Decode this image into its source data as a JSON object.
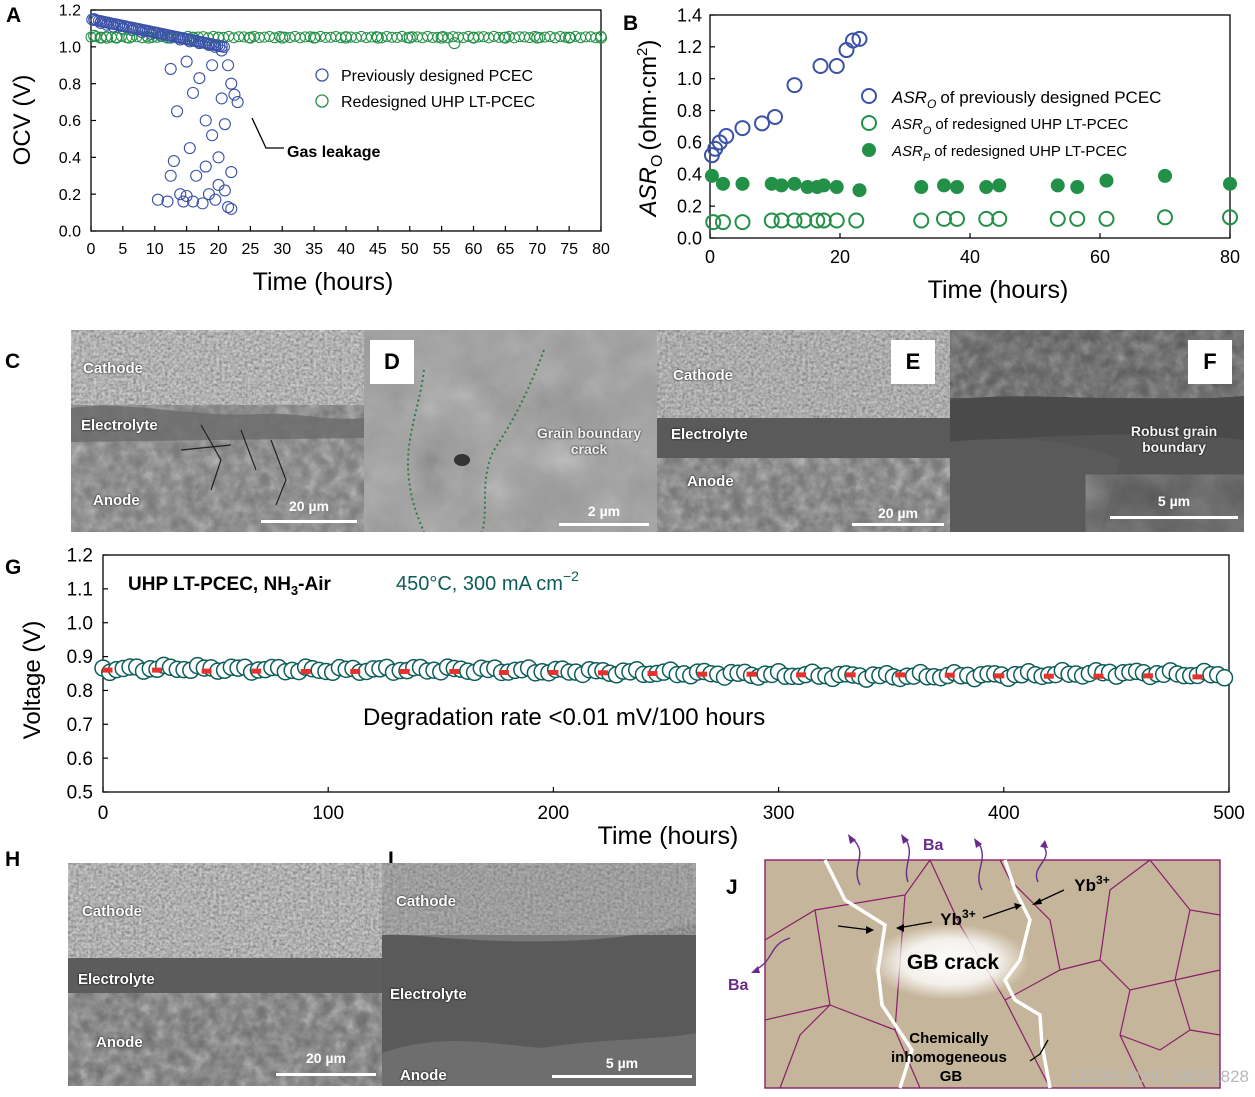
{
  "panel_letters": {
    "A": "A",
    "B": "B",
    "C": "C",
    "D": "D",
    "E": "E",
    "F": "F",
    "G": "G",
    "H": "H",
    "I": "I",
    "J": "J"
  },
  "colors": {
    "blue": "#3b52a8",
    "green": "#239047",
    "teal": "#0d5d5a",
    "red": "#e8302c",
    "gb": "#8a1f6b",
    "grain": "#c5b59a"
  },
  "chart_data": [
    {
      "id": "A",
      "type": "scatter",
      "xlabel": "Time (hours)",
      "ylabel": "OCV (V)",
      "xlim": [
        0,
        80
      ],
      "ylim": [
        0,
        1.2
      ],
      "xticks": [
        0,
        5,
        10,
        15,
        20,
        25,
        30,
        35,
        40,
        45,
        50,
        55,
        60,
        65,
        70,
        75,
        80
      ],
      "yticks": [
        0.0,
        0.2,
        0.4,
        0.6,
        0.8,
        1.0,
        1.2
      ],
      "annotation": "Gas leakage",
      "legend": [
        "Previously designed PCEC",
        "Redesigned UHP LT-PCEC"
      ],
      "series": [
        {
          "name": "Previously designed PCEC",
          "marker": "open-circle",
          "color": "#3b52a8",
          "points": [
            [
              0.5,
              1.15
            ],
            [
              1.5,
              1.13
            ],
            [
              2.5,
              1.12
            ],
            [
              3.5,
              1.11
            ],
            [
              5,
              1.1
            ],
            [
              6.5,
              1.09
            ],
            [
              8,
              1.08
            ],
            [
              9.5,
              1.07
            ],
            [
              11,
              1.06
            ],
            [
              12.5,
              1.05
            ],
            [
              14,
              1.04
            ],
            [
              15.5,
              1.03
            ],
            [
              17,
              1.02
            ],
            [
              18.5,
              1.01
            ],
            [
              19.5,
              1.0
            ],
            [
              20.5,
              0.98
            ],
            [
              21.5,
              0.9
            ],
            [
              22,
              0.8
            ],
            [
              22.5,
              0.74
            ],
            [
              23,
              0.7
            ],
            [
              10.5,
              0.17
            ],
            [
              12,
              0.16
            ],
            [
              12.5,
              0.3
            ],
            [
              13,
              0.38
            ],
            [
              13.5,
              0.65
            ],
            [
              14,
              0.2
            ],
            [
              14.5,
              0.16
            ],
            [
              15,
              0.19
            ],
            [
              15.5,
              0.45
            ],
            [
              16,
              0.16
            ],
            [
              16.5,
              0.3
            ],
            [
              17,
              0.83
            ],
            [
              17.5,
              0.15
            ],
            [
              18,
              0.35
            ],
            [
              18.5,
              0.2
            ],
            [
              19,
              0.52
            ],
            [
              19.5,
              0.17
            ],
            [
              20,
              0.25
            ],
            [
              20.5,
              0.72
            ],
            [
              21,
              0.22
            ],
            [
              21.5,
              0.13
            ],
            [
              22,
              0.32
            ],
            [
              22,
              0.12
            ],
            [
              12.5,
              0.88
            ],
            [
              15,
              0.92
            ],
            [
              16,
              0.75
            ],
            [
              18,
              0.6
            ],
            [
              19,
              0.9
            ],
            [
              20,
              0.4
            ],
            [
              21,
              0.58
            ]
          ]
        },
        {
          "name": "Redesigned UHP LT-PCEC",
          "marker": "open-circle",
          "color": "#239047",
          "points": [
            [
              0.5,
              1.06
            ],
            [
              1.5,
              1.05
            ],
            [
              2.5,
              1.05
            ],
            [
              4,
              1.05
            ],
            [
              6,
              1.05
            ],
            [
              9,
              1.05
            ],
            [
              12,
              1.05
            ],
            [
              16,
              1.05
            ],
            [
              20,
              1.05
            ],
            [
              25,
              1.05
            ],
            [
              30,
              1.05
            ],
            [
              35,
              1.05
            ],
            [
              40,
              1.05
            ],
            [
              45,
              1.05
            ],
            [
              50,
              1.05
            ],
            [
              55,
              1.05
            ],
            [
              57,
              1.02
            ],
            [
              60,
              1.05
            ],
            [
              65,
              1.05
            ],
            [
              70,
              1.05
            ],
            [
              75,
              1.05
            ],
            [
              80,
              1.05
            ]
          ]
        }
      ]
    },
    {
      "id": "B",
      "type": "scatter",
      "xlabel": "Time (hours)",
      "ylabel": "ASR",
      "ylabel_sub": "O",
      "ylabel_unit": "(ohm·cm",
      "xlim": [
        0,
        80
      ],
      "ylim": [
        0,
        1.4
      ],
      "xticks": [
        0,
        20,
        40,
        60,
        80
      ],
      "yticks": [
        0.0,
        0.2,
        0.4,
        0.6,
        0.8,
        1.0,
        1.2,
        1.4
      ],
      "legend": [
        {
          "symbol": "ASR",
          "sub": "O",
          "text": "of previously designed PCEC"
        },
        {
          "symbol": "ASR",
          "sub": "O",
          "text": "of redesigned UHP LT-PCEC"
        },
        {
          "symbol": "ASR",
          "sub": "P",
          "text": "of redesigned UHP LT-PCEC"
        }
      ],
      "series": [
        {
          "name": "ASR_O previously designed PCEC",
          "marker": "open-circle",
          "color": "#3b52a8",
          "points": [
            [
              0.3,
              0.52
            ],
            [
              0.8,
              0.56
            ],
            [
              1.5,
              0.6
            ],
            [
              2.5,
              0.64
            ],
            [
              5,
              0.69
            ],
            [
              8,
              0.72
            ],
            [
              10,
              0.76
            ],
            [
              13,
              0.96
            ],
            [
              17,
              1.08
            ],
            [
              19.5,
              1.08
            ],
            [
              21,
              1.18
            ],
            [
              22,
              1.24
            ],
            [
              23,
              1.25
            ]
          ]
        },
        {
          "name": "ASR_O redesigned UHP LT-PCEC",
          "marker": "open-circle",
          "color": "#239047",
          "points": [
            [
              0.5,
              0.1
            ],
            [
              2,
              0.1
            ],
            [
              5,
              0.1
            ],
            [
              9.5,
              0.11
            ],
            [
              11,
              0.11
            ],
            [
              13,
              0.11
            ],
            [
              14.5,
              0.11
            ],
            [
              16.5,
              0.11
            ],
            [
              17.5,
              0.11
            ],
            [
              19.5,
              0.11
            ],
            [
              22.5,
              0.11
            ],
            [
              32.5,
              0.11
            ],
            [
              36,
              0.12
            ],
            [
              38,
              0.12
            ],
            [
              42.5,
              0.12
            ],
            [
              44.5,
              0.12
            ],
            [
              53.5,
              0.12
            ],
            [
              56.5,
              0.12
            ],
            [
              61,
              0.12
            ],
            [
              70,
              0.13
            ],
            [
              80,
              0.13
            ]
          ]
        },
        {
          "name": "ASR_P redesigned UHP LT-PCEC",
          "marker": "filled-circle",
          "color": "#239047",
          "points": [
            [
              0.3,
              0.39
            ],
            [
              2,
              0.34
            ],
            [
              5,
              0.34
            ],
            [
              9.5,
              0.34
            ],
            [
              11,
              0.33
            ],
            [
              13,
              0.34
            ],
            [
              15,
              0.32
            ],
            [
              16.5,
              0.32
            ],
            [
              17.5,
              0.33
            ],
            [
              19.5,
              0.32
            ],
            [
              23,
              0.3
            ],
            [
              32.5,
              0.32
            ],
            [
              36,
              0.33
            ],
            [
              38,
              0.32
            ],
            [
              42.5,
              0.32
            ],
            [
              44.5,
              0.33
            ],
            [
              53.5,
              0.33
            ],
            [
              56.5,
              0.32
            ],
            [
              61,
              0.36
            ],
            [
              70,
              0.39
            ],
            [
              80,
              0.34
            ]
          ]
        }
      ]
    },
    {
      "id": "G",
      "type": "scatter",
      "title_bold": "UHP LT-PCEC, NH",
      "title_sub": "3",
      "title_bold_end": "-Air",
      "condition": "450°C, 300 mA cm",
      "condition_sup": "−2",
      "xlabel": "Time (hours)",
      "ylabel": "Voltage (V)",
      "annotation": "Degradation rate <0.01 mV/100 hours",
      "xlim": [
        0,
        500
      ],
      "ylim": [
        0.5,
        1.2
      ],
      "xticks": [
        0,
        100,
        200,
        300,
        400,
        500
      ],
      "yticks": [
        0.5,
        0.6,
        0.7,
        0.8,
        0.9,
        1.0,
        1.1,
        1.2
      ],
      "series": [
        {
          "name": "Voltage",
          "marker": "open-circle",
          "color": "#0d5d5a",
          "start": 0,
          "end": 500,
          "step": 3,
          "level_points": [
            [
              0,
              0.862
            ],
            [
              25,
              0.866
            ],
            [
              100,
              0.86
            ],
            [
              150,
              0.862
            ],
            [
              200,
              0.857
            ],
            [
              300,
              0.846
            ],
            [
              350,
              0.842
            ],
            [
              400,
              0.845
            ],
            [
              450,
              0.852
            ],
            [
              500,
              0.845
            ]
          ]
        },
        {
          "name": "Average",
          "marker": "red-dash",
          "color": "#e8302c",
          "points": [
            [
              2,
              0.86
            ],
            [
              24,
              0.86
            ],
            [
              46,
              0.857
            ],
            [
              68,
              0.857
            ],
            [
              90,
              0.856
            ],
            [
              112,
              0.856
            ],
            [
              134,
              0.856
            ],
            [
              156,
              0.856
            ],
            [
              178,
              0.853
            ],
            [
              200,
              0.853
            ],
            [
              222,
              0.852
            ],
            [
              244,
              0.85
            ],
            [
              266,
              0.848
            ],
            [
              288,
              0.848
            ],
            [
              310,
              0.846
            ],
            [
              332,
              0.846
            ],
            [
              354,
              0.846
            ],
            [
              376,
              0.845
            ],
            [
              398,
              0.843
            ],
            [
              420,
              0.842
            ],
            [
              442,
              0.842
            ],
            [
              464,
              0.843
            ],
            [
              486,
              0.84
            ]
          ]
        }
      ]
    }
  ],
  "sem": {
    "C": {
      "cathode": "Cathode",
      "electrolyte": "Electrolyte",
      "anode": "Anode",
      "scale": "20 µm"
    },
    "D": {
      "note": "Grain boundary crack",
      "scale": "2 µm"
    },
    "E": {
      "cathode": "Cathode",
      "electrolyte": "Electrolyte",
      "anode": "Anode",
      "scale": "20 µm"
    },
    "F": {
      "note": "Robust grain boundary",
      "scale": "5 µm"
    },
    "H": {
      "cathode": "Cathode",
      "electrolyte": "Electrolyte",
      "anode": "Anode",
      "scale": "20 µm"
    },
    "I": {
      "cathode": "Cathode",
      "electrolyte": "Electrolyte",
      "anode": "Anode",
      "scale": "5 µm"
    }
  },
  "schematic": {
    "ba": "Ba",
    "yb": "Yb",
    "yb_sup": "3+",
    "crack": "GB crack",
    "chem_1": "Chemically",
    "chem_2": "inhomogeneous",
    "chem_3": "GB"
  },
  "watermark": "CSDN @m0_68961828"
}
